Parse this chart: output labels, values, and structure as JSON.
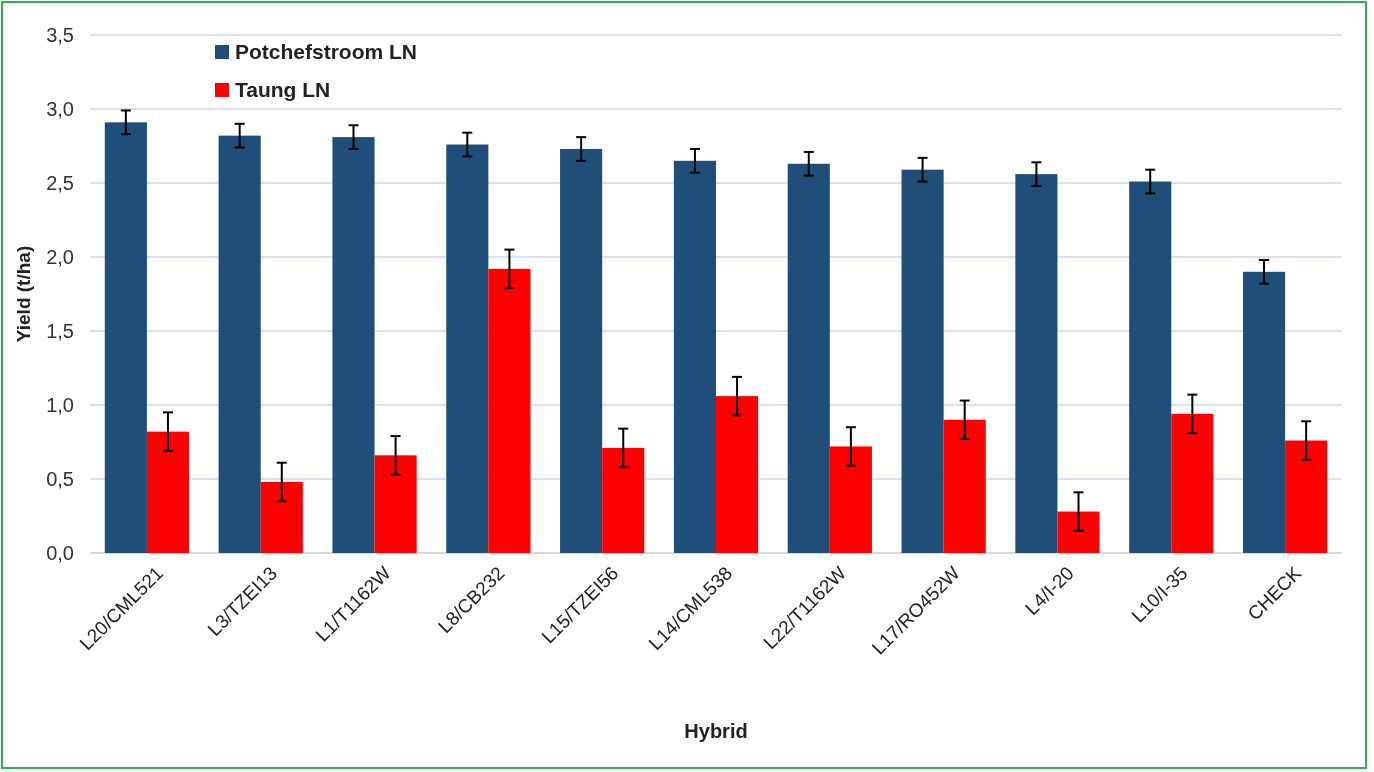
{
  "chart_data": {
    "type": "bar",
    "xlabel": "Hybrid",
    "ylabel": "Yield (t/ha)",
    "categories": [
      "L20/CML521",
      "L3/TZEI13",
      "L1/T1162W",
      "L8/CB232",
      "L15/TZEI56",
      "L14/CML538",
      "L22/T1162W",
      "L17/RO452W",
      "L4/I-20",
      "L10/I-35",
      "CHECK"
    ],
    "series": [
      {
        "name": "Potchefstroom LN",
        "color": "#1f4e79",
        "values": [
          2.91,
          2.82,
          2.81,
          2.76,
          2.73,
          2.65,
          2.63,
          2.59,
          2.56,
          2.51,
          1.9
        ],
        "errors": [
          0.08,
          0.08,
          0.08,
          0.08,
          0.08,
          0.08,
          0.08,
          0.08,
          0.08,
          0.08,
          0.08
        ]
      },
      {
        "name": "Taung LN",
        "color": "#ff0000",
        "values": [
          0.82,
          0.48,
          0.66,
          1.92,
          0.71,
          1.06,
          0.72,
          0.9,
          0.28,
          0.94,
          0.76
        ],
        "errors": [
          0.13,
          0.13,
          0.13,
          0.13,
          0.13,
          0.13,
          0.13,
          0.13,
          0.13,
          0.13,
          0.13
        ]
      }
    ],
    "ylim": [
      0,
      3.5
    ],
    "yticks": [
      {
        "value": 0,
        "label": "0,0"
      },
      {
        "value": 0.5,
        "label": "0,5"
      },
      {
        "value": 1,
        "label": "1,0"
      },
      {
        "value": 1.5,
        "label": "1,5"
      },
      {
        "value": 2,
        "label": "2,0"
      },
      {
        "value": 2.5,
        "label": "2,5"
      },
      {
        "value": 3,
        "label": "3,0"
      },
      {
        "value": 3.5,
        "label": "3,5"
      }
    ],
    "grid": "y",
    "legend": "top left"
  }
}
